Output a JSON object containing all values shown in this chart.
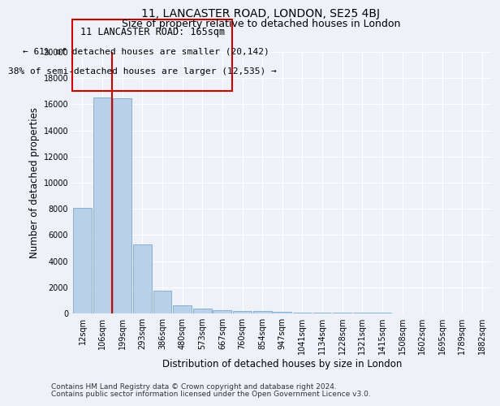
{
  "title": "11, LANCASTER ROAD, LONDON, SE25 4BJ",
  "subtitle": "Size of property relative to detached houses in London",
  "xlabel": "Distribution of detached houses by size in London",
  "ylabel": "Number of detached properties",
  "bin_labels": [
    "12sqm",
    "106sqm",
    "199sqm",
    "293sqm",
    "386sqm",
    "480sqm",
    "573sqm",
    "667sqm",
    "760sqm",
    "854sqm",
    "947sqm",
    "1041sqm",
    "1134sqm",
    "1228sqm",
    "1321sqm",
    "1415sqm",
    "1508sqm",
    "1602sqm",
    "1695sqm",
    "1789sqm",
    "1882sqm"
  ],
  "bar_heights": [
    8050,
    16500,
    16450,
    5300,
    1750,
    650,
    350,
    280,
    200,
    180,
    130,
    90,
    70,
    55,
    45,
    38,
    32,
    28,
    24,
    20,
    17
  ],
  "bar_color": "#b8d0e8",
  "bar_edge_color": "#6ca0c8",
  "vline_bar_index": 2,
  "annotation_text_line1": "11 LANCASTER ROAD: 165sqm",
  "annotation_text_line2": "← 61% of detached houses are smaller (20,142)",
  "annotation_text_line3": "38% of semi-detached houses are larger (12,535) →",
  "annotation_box_color": "#cc0000",
  "vline_color": "#cc0000",
  "ylim": [
    0,
    20000
  ],
  "yticks": [
    0,
    2000,
    4000,
    6000,
    8000,
    10000,
    12000,
    14000,
    16000,
    18000,
    20000
  ],
  "footer_line1": "Contains HM Land Registry data © Crown copyright and database right 2024.",
  "footer_line2": "Contains public sector information licensed under the Open Government Licence v3.0.",
  "background_color": "#eef2f8",
  "grid_color": "#ffffff",
  "title_fontsize": 10,
  "subtitle_fontsize": 9,
  "axis_label_fontsize": 8.5,
  "tick_fontsize": 7,
  "annotation_fontsize": 8.5,
  "footer_fontsize": 6.5
}
